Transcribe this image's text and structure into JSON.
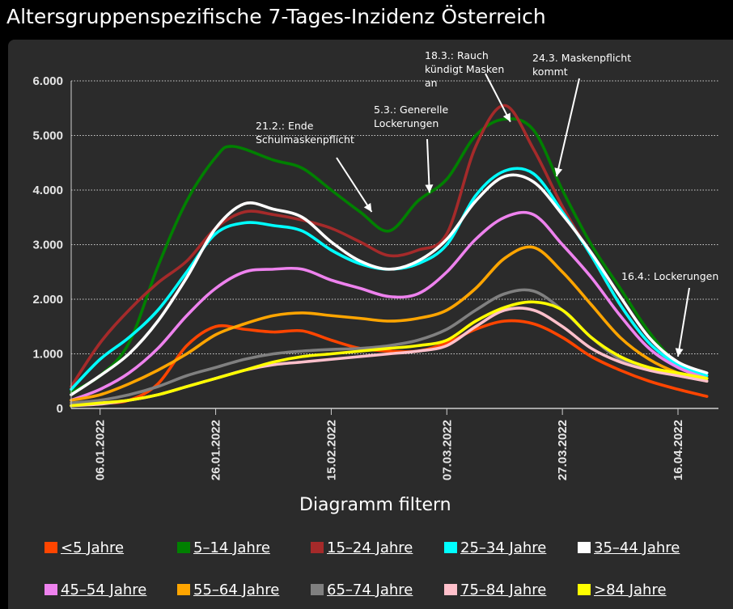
{
  "title": "Altersgruppenspezifische 7-Tages-Inzidenz Österreich",
  "filter_label": "Diagramm filtern",
  "chart_data": {
    "type": "line",
    "title": "Altersgruppenspezifische 7-Tages-Inzidenz Österreich",
    "ylim": [
      0,
      6000
    ],
    "y_ticks": [
      "0",
      "1.000",
      "2.000",
      "3.000",
      "4.000",
      "5.000",
      "6.000"
    ],
    "y_tick_values": [
      0,
      1000,
      2000,
      3000,
      4000,
      5000,
      6000
    ],
    "x_start": "2022-01-01",
    "x_end": "2022-04-23",
    "x_ticks": [
      "06.01.2022",
      "26.01.2022",
      "15.02.2022",
      "07.03.2022",
      "27.03.2022",
      "16.04.2022"
    ],
    "x_tick_dates": [
      "2022-01-06",
      "2022-01-26",
      "2022-02-15",
      "2022-03-07",
      "2022-03-27",
      "2022-04-16"
    ],
    "grid": "horizontal dotted",
    "legend_position": "bottom",
    "series": [
      {
        "name": "<5 Jahre",
        "color": "#ff4500",
        "x": [
          "2022-01-01",
          "2022-01-06",
          "2022-01-11",
          "2022-01-16",
          "2022-01-21",
          "2022-01-26",
          "2022-01-31",
          "2022-02-05",
          "2022-02-10",
          "2022-02-15",
          "2022-02-20",
          "2022-02-25",
          "2022-03-02",
          "2022-03-07",
          "2022-03-12",
          "2022-03-17",
          "2022-03-22",
          "2022-03-27",
          "2022-04-01",
          "2022-04-06",
          "2022-04-11",
          "2022-04-16",
          "2022-04-21"
        ],
        "values": [
          100,
          100,
          150,
          450,
          1150,
          1500,
          1450,
          1400,
          1420,
          1250,
          1100,
          1050,
          1050,
          1200,
          1450,
          1600,
          1550,
          1300,
          950,
          700,
          500,
          350,
          220
        ]
      },
      {
        "name": "5–14 Jahre",
        "color": "#008000",
        "x": [
          "2022-01-01",
          "2022-01-06",
          "2022-01-11",
          "2022-01-16",
          "2022-01-21",
          "2022-01-26",
          "2022-01-29",
          "2022-02-05",
          "2022-02-10",
          "2022-02-15",
          "2022-02-20",
          "2022-02-25",
          "2022-03-02",
          "2022-03-07",
          "2022-03-12",
          "2022-03-17",
          "2022-03-22",
          "2022-03-27",
          "2022-04-01",
          "2022-04-06",
          "2022-04-11",
          "2022-04-16",
          "2022-04-21"
        ],
        "values": [
          300,
          600,
          1200,
          2600,
          3800,
          4600,
          4800,
          4550,
          4400,
          4000,
          3600,
          3250,
          3800,
          4200,
          5000,
          5300,
          5100,
          4000,
          3000,
          2200,
          1400,
          800,
          500
        ]
      },
      {
        "name": "15–24 Jahre",
        "color": "#a52a2a",
        "x": [
          "2022-01-01",
          "2022-01-06",
          "2022-01-11",
          "2022-01-16",
          "2022-01-21",
          "2022-01-26",
          "2022-01-31",
          "2022-02-05",
          "2022-02-10",
          "2022-02-15",
          "2022-02-20",
          "2022-02-25",
          "2022-03-02",
          "2022-03-07",
          "2022-03-12",
          "2022-03-17",
          "2022-03-22",
          "2022-03-27",
          "2022-04-01",
          "2022-04-06",
          "2022-04-11",
          "2022-04-16",
          "2022-04-21"
        ],
        "values": [
          400,
          1200,
          1800,
          2300,
          2700,
          3300,
          3600,
          3550,
          3450,
          3300,
          3050,
          2800,
          2900,
          3200,
          4800,
          5550,
          4750,
          3700,
          2800,
          1900,
          1200,
          800,
          550
        ]
      },
      {
        "name": "25–34 Jahre",
        "color": "#00ffff",
        "x": [
          "2022-01-01",
          "2022-01-06",
          "2022-01-11",
          "2022-01-16",
          "2022-01-21",
          "2022-01-26",
          "2022-01-31",
          "2022-02-05",
          "2022-02-10",
          "2022-02-15",
          "2022-02-20",
          "2022-02-25",
          "2022-03-02",
          "2022-03-07",
          "2022-03-12",
          "2022-03-17",
          "2022-03-22",
          "2022-03-27",
          "2022-04-01",
          "2022-04-06",
          "2022-04-11",
          "2022-04-16",
          "2022-04-21"
        ],
        "values": [
          350,
          900,
          1300,
          1800,
          2500,
          3200,
          3400,
          3350,
          3250,
          2900,
          2650,
          2550,
          2650,
          3000,
          3900,
          4350,
          4300,
          3600,
          2800,
          1900,
          1200,
          800,
          600
        ]
      },
      {
        "name": "35–44 Jahre",
        "color": "#ffffff",
        "x": [
          "2022-01-01",
          "2022-01-06",
          "2022-01-11",
          "2022-01-16",
          "2022-01-21",
          "2022-01-26",
          "2022-01-31",
          "2022-02-05",
          "2022-02-10",
          "2022-02-15",
          "2022-02-20",
          "2022-02-25",
          "2022-03-02",
          "2022-03-07",
          "2022-03-12",
          "2022-03-17",
          "2022-03-22",
          "2022-03-27",
          "2022-04-01",
          "2022-04-06",
          "2022-04-11",
          "2022-04-16",
          "2022-04-21"
        ],
        "values": [
          250,
          600,
          1000,
          1600,
          2400,
          3300,
          3750,
          3650,
          3500,
          3050,
          2700,
          2550,
          2700,
          3100,
          3800,
          4250,
          4150,
          3550,
          2850,
          2050,
          1300,
          850,
          650
        ]
      },
      {
        "name": "45–54 Jahre",
        "color": "#ee82ee",
        "x": [
          "2022-01-01",
          "2022-01-06",
          "2022-01-11",
          "2022-01-16",
          "2022-01-21",
          "2022-01-26",
          "2022-01-31",
          "2022-02-05",
          "2022-02-10",
          "2022-02-15",
          "2022-02-20",
          "2022-02-25",
          "2022-03-02",
          "2022-03-07",
          "2022-03-12",
          "2022-03-17",
          "2022-03-22",
          "2022-03-27",
          "2022-04-01",
          "2022-04-06",
          "2022-04-11",
          "2022-04-16",
          "2022-04-21"
        ],
        "values": [
          150,
          350,
          650,
          1100,
          1700,
          2200,
          2500,
          2550,
          2550,
          2350,
          2200,
          2050,
          2100,
          2500,
          3100,
          3500,
          3550,
          3000,
          2400,
          1700,
          1100,
          750,
          550
        ]
      },
      {
        "name": "55–64 Jahre",
        "color": "#ffa500",
        "x": [
          "2022-01-01",
          "2022-01-06",
          "2022-01-11",
          "2022-01-16",
          "2022-01-21",
          "2022-01-26",
          "2022-01-31",
          "2022-02-05",
          "2022-02-10",
          "2022-02-15",
          "2022-02-20",
          "2022-02-25",
          "2022-03-02",
          "2022-03-07",
          "2022-03-12",
          "2022-03-17",
          "2022-03-22",
          "2022-03-27",
          "2022-04-01",
          "2022-04-06",
          "2022-04-11",
          "2022-04-16",
          "2022-04-21"
        ],
        "values": [
          150,
          250,
          450,
          700,
          1000,
          1350,
          1550,
          1700,
          1750,
          1700,
          1650,
          1600,
          1650,
          1800,
          2200,
          2750,
          2950,
          2500,
          1900,
          1300,
          900,
          650,
          500
        ]
      },
      {
        "name": "65–74 Jahre",
        "color": "#808080",
        "x": [
          "2022-01-01",
          "2022-01-06",
          "2022-01-11",
          "2022-01-16",
          "2022-01-21",
          "2022-01-26",
          "2022-01-31",
          "2022-02-05",
          "2022-02-10",
          "2022-02-15",
          "2022-02-20",
          "2022-02-25",
          "2022-03-02",
          "2022-03-07",
          "2022-03-12",
          "2022-03-17",
          "2022-03-22",
          "2022-03-27",
          "2022-04-01",
          "2022-04-06",
          "2022-04-11",
          "2022-04-16",
          "2022-04-21"
        ],
        "values": [
          100,
          150,
          250,
          400,
          600,
          750,
          900,
          1000,
          1050,
          1080,
          1100,
          1150,
          1250,
          1450,
          1800,
          2100,
          2150,
          1800,
          1300,
          900,
          700,
          600,
          500
        ]
      },
      {
        "name": "75–84 Jahre",
        "color": "#ffc0cb",
        "x": [
          "2022-01-01",
          "2022-01-06",
          "2022-01-11",
          "2022-01-16",
          "2022-01-21",
          "2022-01-26",
          "2022-01-31",
          "2022-02-05",
          "2022-02-10",
          "2022-02-15",
          "2022-02-20",
          "2022-02-25",
          "2022-03-02",
          "2022-03-07",
          "2022-03-12",
          "2022-03-17",
          "2022-03-22",
          "2022-03-27",
          "2022-04-01",
          "2022-04-06",
          "2022-04-11",
          "2022-04-16",
          "2022-04-21"
        ],
        "values": [
          50,
          80,
          150,
          250,
          400,
          550,
          700,
          800,
          850,
          900,
          950,
          1000,
          1050,
          1150,
          1500,
          1800,
          1800,
          1500,
          1100,
          850,
          700,
          600,
          500
        ]
      },
      {
        "name": ">84 Jahre",
        "color": "#ffff00",
        "x": [
          "2022-01-01",
          "2022-01-06",
          "2022-01-11",
          "2022-01-16",
          "2022-01-21",
          "2022-01-26",
          "2022-01-31",
          "2022-02-05",
          "2022-02-10",
          "2022-02-15",
          "2022-02-20",
          "2022-02-25",
          "2022-03-02",
          "2022-03-07",
          "2022-03-12",
          "2022-03-17",
          "2022-03-22",
          "2022-03-27",
          "2022-04-01",
          "2022-04-06",
          "2022-04-11",
          "2022-04-16",
          "2022-04-21"
        ],
        "values": [
          50,
          100,
          150,
          250,
          400,
          550,
          700,
          850,
          950,
          1000,
          1050,
          1100,
          1150,
          1250,
          1600,
          1850,
          1950,
          1800,
          1300,
          950,
          750,
          650,
          550
        ]
      }
    ],
    "annotations": [
      {
        "lines": [
          "21.2.: Ende",
          "Schulmaskenpflicht"
        ],
        "date": "2022-02-22",
        "value": 3600
      },
      {
        "lines": [
          "5.3.: Generelle",
          "Lockerungen"
        ],
        "date": "2022-03-04",
        "value": 3950
      },
      {
        "lines": [
          "18.3.: Rauch",
          "kündigt Masken",
          "an"
        ],
        "date": "2022-03-18",
        "value": 5250
      },
      {
        "lines": [
          "24.3. Maskenpflicht",
          "kommt"
        ],
        "date": "2022-03-26",
        "value": 4250
      },
      {
        "lines": [
          "16.4.: Lockerungen"
        ],
        "date": "2022-04-16",
        "value": 950
      }
    ]
  }
}
